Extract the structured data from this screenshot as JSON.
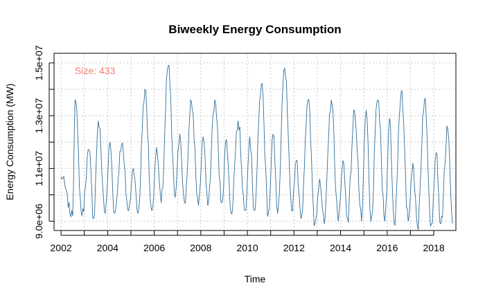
{
  "chart_data": {
    "type": "line",
    "title": "Biweekly Energy Consumption",
    "xlabel": "Time",
    "ylabel": "Energy Consumption (MW)",
    "annotation": "Size: 433",
    "xlim": [
      2001.7,
      2018.95
    ],
    "ylim": [
      8650000.0,
      15365000.0
    ],
    "grid": true,
    "line_color": "#2F6E9A",
    "annotation_color": "#F0806E",
    "x_ticks": [
      2002,
      2003,
      2004,
      2005,
      2006,
      2007,
      2008,
      2009,
      2010,
      2011,
      2012,
      2013,
      2014,
      2015,
      2016,
      2017,
      2018
    ],
    "x_tick_labels": [
      "2002",
      "",
      "2004",
      "",
      "2006",
      "",
      "2008",
      "",
      "2010",
      "",
      "2012",
      "",
      "2014",
      "",
      "2016",
      "",
      "2018"
    ],
    "y_ticks": [
      9000000.0,
      10000000.0,
      11000000.0,
      12000000.0,
      13000000.0,
      14000000.0,
      15000000.0
    ],
    "y_tick_labels": [
      "9.0e+06",
      "",
      "1.1e+07",
      "",
      "1.3e+07",
      "",
      "1.5e+07"
    ],
    "series": [
      {
        "x": [
          2002.0,
          2002.5,
          2002.6,
          2002.9,
          2003.2,
          2003.4,
          2003.6,
          2003.9,
          2004.1,
          2004.3,
          2004.6,
          2004.9,
          2005.1,
          2005.3,
          2005.6,
          2005.9,
          2006.1,
          2006.3,
          2006.6,
          2006.9,
          2007.1,
          2007.3,
          2007.6,
          2007.9,
          2008.1,
          2008.3,
          2008.6,
          2008.9,
          2009.1,
          2009.3,
          2009.6,
          2009.9,
          2010.1,
          2010.3,
          2010.6,
          2010.9,
          2011.1,
          2011.3,
          2011.6,
          2011.9,
          2012.1,
          2012.3,
          2012.6,
          2012.9,
          2013.1,
          2013.3,
          2013.6,
          2013.9,
          2014.1,
          2014.3,
          2014.6,
          2014.9,
          2015.1,
          2015.3,
          2015.6,
          2015.9,
          2016.1,
          2016.3,
          2016.6,
          2016.9,
          2017.1,
          2017.3,
          2017.6,
          2017.9,
          2018.1,
          2018.3,
          2018.6,
          2018.8
        ],
        "y": [
          10700000.0,
          9200000.0,
          13600000.0,
          9200000.0,
          11700000.0,
          9100000.0,
          12800000.0,
          9300000.0,
          12000000.0,
          9300000.0,
          11900000.0,
          9400000.0,
          11000000.0,
          9300000.0,
          14000000.0,
          9400000.0,
          11800000.0,
          9700000.0,
          14900000.0,
          9900000.0,
          12300000.0,
          9700000.0,
          13500000.0,
          9600000.0,
          12200000.0,
          9600000.0,
          13600000.0,
          9700000.0,
          12100000.0,
          9300000.0,
          12800000.0,
          9400000.0,
          12200000.0,
          9400000.0,
          14200000.0,
          9300000.0,
          12300000.0,
          9300000.0,
          14800000.0,
          9400000.0,
          11300000.0,
          9100000.0,
          13600000.0,
          8900000.0,
          10600000.0,
          8900000.0,
          13600000.0,
          9000000.0,
          11300000.0,
          9100000.0,
          13200000.0,
          9000000.0,
          13200000.0,
          9000000.0,
          13600000.0,
          9000000.0,
          12900000.0,
          8900000.0,
          13900000.0,
          9000000.0,
          11200000.0,
          8800000.0,
          13600000.0,
          8900000.0,
          11600000.0,
          8900000.0,
          12500000.0,
          8900000.0
        ]
      }
    ]
  }
}
